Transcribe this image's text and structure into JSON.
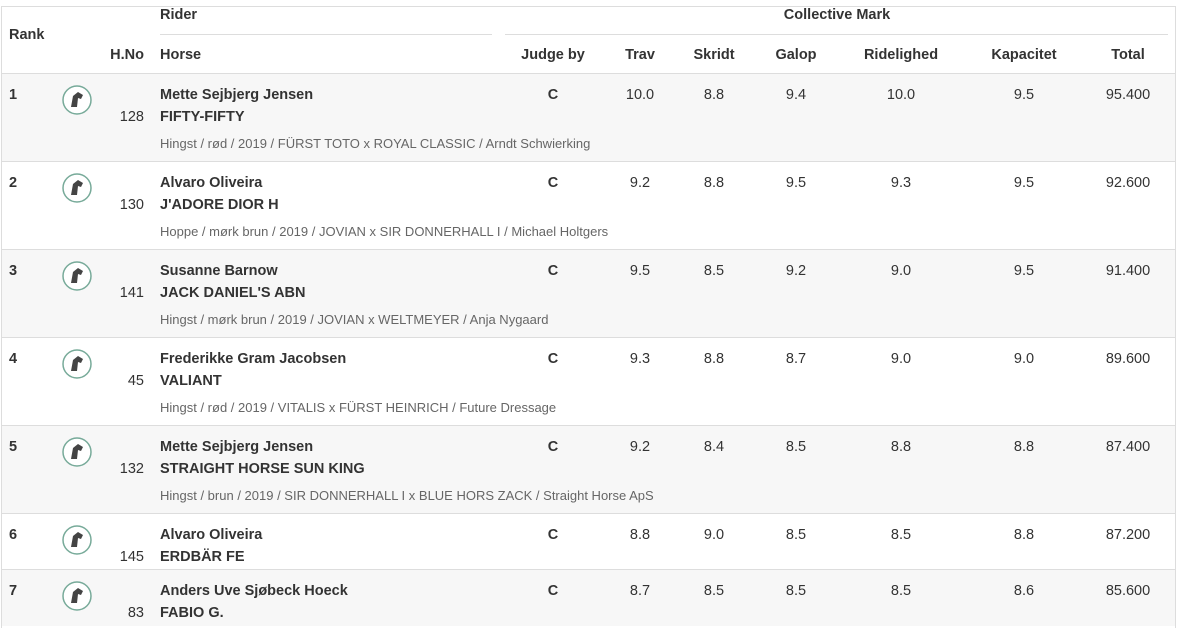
{
  "table": {
    "header": {
      "rank": "Rank",
      "hno": "H.No",
      "rider": "Rider",
      "horse": "Horse",
      "collective": "Collective Mark",
      "judge": "Judge by",
      "trav": "Trav",
      "skridt": "Skridt",
      "galop": "Galop",
      "ridelighed": "Ridelighed",
      "kapacitet": "Kapacitet",
      "total": "Total"
    },
    "rows": [
      {
        "rank": "1",
        "hno": "128",
        "rider": "Mette Sejbjerg Jensen",
        "horse": "FIFTY-FIFTY",
        "pedigree": "Hingst / rød / 2019 / FÜRST TOTO x ROYAL CLASSIC / Arndt Schwierking",
        "judge": "C",
        "trav": "10.0",
        "skridt": "8.8",
        "galop": "9.4",
        "ridelighed": "10.0",
        "kapacitet": "9.5",
        "total": "95.400"
      },
      {
        "rank": "2",
        "hno": "130",
        "rider": "Alvaro Oliveira",
        "horse": "J'ADORE DIOR H",
        "pedigree": "Hoppe / mørk brun / 2019 / JOVIAN x SIR DONNERHALL I / Michael Holtgers",
        "judge": "C",
        "trav": "9.2",
        "skridt": "8.8",
        "galop": "9.5",
        "ridelighed": "9.3",
        "kapacitet": "9.5",
        "total": "92.600"
      },
      {
        "rank": "3",
        "hno": "141",
        "rider": "Susanne Barnow",
        "horse": "JACK DANIEL'S ABN",
        "pedigree": "Hingst / mørk brun / 2019 / JOVIAN x WELTMEYER / Anja Nygaard",
        "judge": "C",
        "trav": "9.5",
        "skridt": "8.5",
        "galop": "9.2",
        "ridelighed": "9.0",
        "kapacitet": "9.5",
        "total": "91.400"
      },
      {
        "rank": "4",
        "hno": "45",
        "rider": "Frederikke Gram Jacobsen",
        "horse": "VALIANT",
        "pedigree": "Hingst / rød / 2019 / VITALIS x FÜRST HEINRICH / Future Dressage",
        "judge": "C",
        "trav": "9.3",
        "skridt": "8.8",
        "galop": "8.7",
        "ridelighed": "9.0",
        "kapacitet": "9.0",
        "total": "89.600"
      },
      {
        "rank": "5",
        "hno": "132",
        "rider": "Mette Sejbjerg Jensen",
        "horse": "STRAIGHT HORSE SUN KING",
        "pedigree": "Hingst / brun / 2019 / SIR DONNERHALL I x BLUE HORS ZACK / Straight Horse ApS",
        "judge": "C",
        "trav": "9.2",
        "skridt": "8.4",
        "galop": "8.5",
        "ridelighed": "8.8",
        "kapacitet": "8.8",
        "total": "87.400"
      },
      {
        "rank": "6",
        "hno": "145",
        "rider": "Alvaro Oliveira",
        "horse": "ERDBÄR FE",
        "judge": "C",
        "trav": "8.8",
        "skridt": "9.0",
        "galop": "8.5",
        "ridelighed": "8.5",
        "kapacitet": "8.8",
        "total": "87.200"
      },
      {
        "rank": "7",
        "hno": "83",
        "rider": "Anders Uve Sjøbeck Hoeck",
        "horse": "FABIO G.",
        "judge": "C",
        "trav": "8.7",
        "skridt": "8.5",
        "galop": "8.5",
        "ridelighed": "8.5",
        "kapacitet": "8.6",
        "total": "85.600"
      }
    ]
  }
}
